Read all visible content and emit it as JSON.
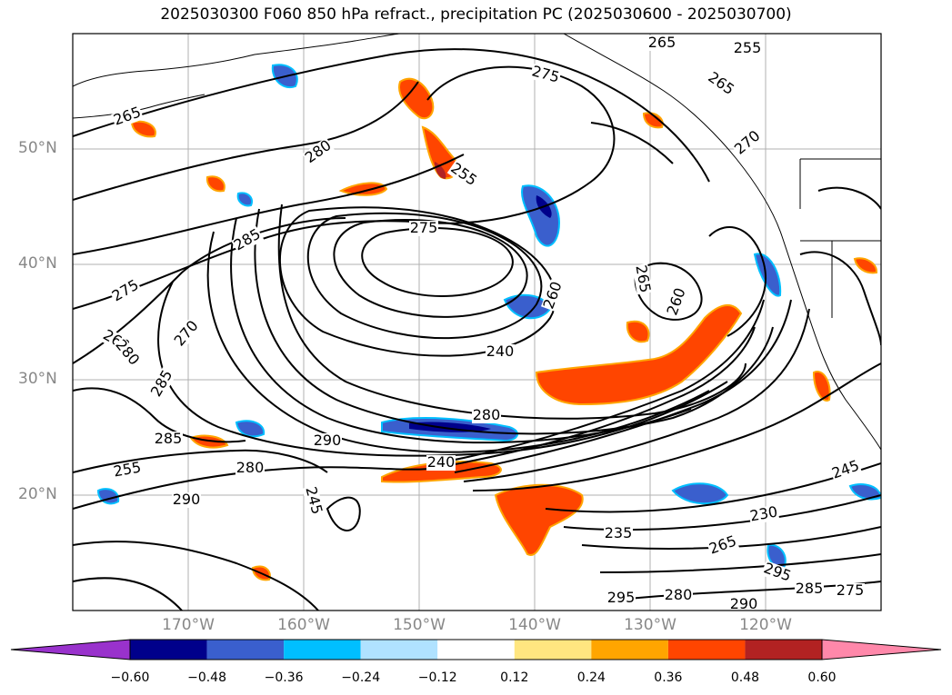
{
  "title": "2025030300 F060 850 hPa refract., precipitation PC (2025030600 - 2025030700)",
  "map": {
    "lat_labels": [
      "50°N",
      "40°N",
      "30°N",
      "20°N"
    ],
    "lon_labels": [
      "170°W",
      "160°W",
      "150°W",
      "140°W",
      "130°W",
      "120°W"
    ],
    "lat_values": [
      50,
      40,
      30,
      20
    ],
    "lon_values": [
      -170,
      -160,
      -150,
      -140,
      -130,
      -120
    ],
    "extent": {
      "lon_min": -180,
      "lon_max": -110,
      "lat_min": 10,
      "lat_max": 60
    },
    "gridlines": true,
    "contour_variable": "850 hPa refractivity",
    "contour_levels_labeled": [
      "265",
      "255",
      "265",
      "265",
      "275",
      "255",
      "275",
      "270",
      "280",
      "285",
      "275",
      "260",
      "270",
      "280",
      "285",
      "285",
      "290",
      "280",
      "290",
      "245",
      "240",
      "280",
      "240",
      "235",
      "230",
      "245",
      "265",
      "295",
      "290",
      "280",
      "295",
      "285",
      "275",
      "260",
      "260",
      "265",
      "255"
    ],
    "colors": {
      "coast": "#000000",
      "grid": "#b0b0b0",
      "contour": "#000000"
    }
  },
  "colorbar": {
    "tick_labels": [
      "−0.60",
      "−0.48",
      "−0.36",
      "−0.24",
      "−0.12",
      "0.12",
      "0.24",
      "0.36",
      "0.48",
      "0.60"
    ],
    "bins": [
      "#9932cc",
      "#00008b",
      "#3a5fcd",
      "#00bfff",
      "#b0e2ff",
      "#ffffff",
      "#ffe680",
      "#ffa500",
      "#ff4500",
      "#b22222",
      "#ff88aa"
    ]
  }
}
